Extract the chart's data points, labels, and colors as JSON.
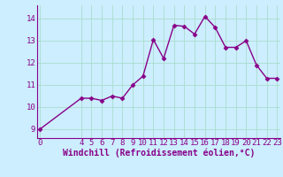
{
  "x": [
    0,
    4,
    5,
    6,
    7,
    8,
    9,
    10,
    11,
    12,
    13,
    14,
    15,
    16,
    17,
    18,
    19,
    20,
    21,
    22,
    23
  ],
  "y": [
    9.0,
    10.4,
    10.4,
    10.3,
    10.5,
    10.4,
    11.0,
    11.4,
    13.05,
    12.2,
    13.7,
    13.65,
    13.3,
    14.1,
    13.6,
    12.7,
    12.7,
    13.0,
    11.9,
    11.3,
    11.3
  ],
  "line_color": "#880088",
  "marker": "D",
  "marker_size": 2.5,
  "bg_color": "#cceeff",
  "grid_color": "#aaddcc",
  "xlabel": "Windchill (Refroidissement éolien,°C)",
  "xlabel_color": "#880088",
  "xlabel_fontsize": 7,
  "tick_color": "#880088",
  "tick_fontsize": 6.5,
  "yticks": [
    9,
    10,
    11,
    12,
    13,
    14
  ],
  "xticks": [
    0,
    4,
    5,
    6,
    7,
    8,
    9,
    10,
    11,
    12,
    13,
    14,
    15,
    16,
    17,
    18,
    19,
    20,
    21,
    22,
    23
  ],
  "xlim": [
    -0.3,
    23.3
  ],
  "ylim": [
    8.6,
    14.6
  ],
  "linewidth": 1.0
}
